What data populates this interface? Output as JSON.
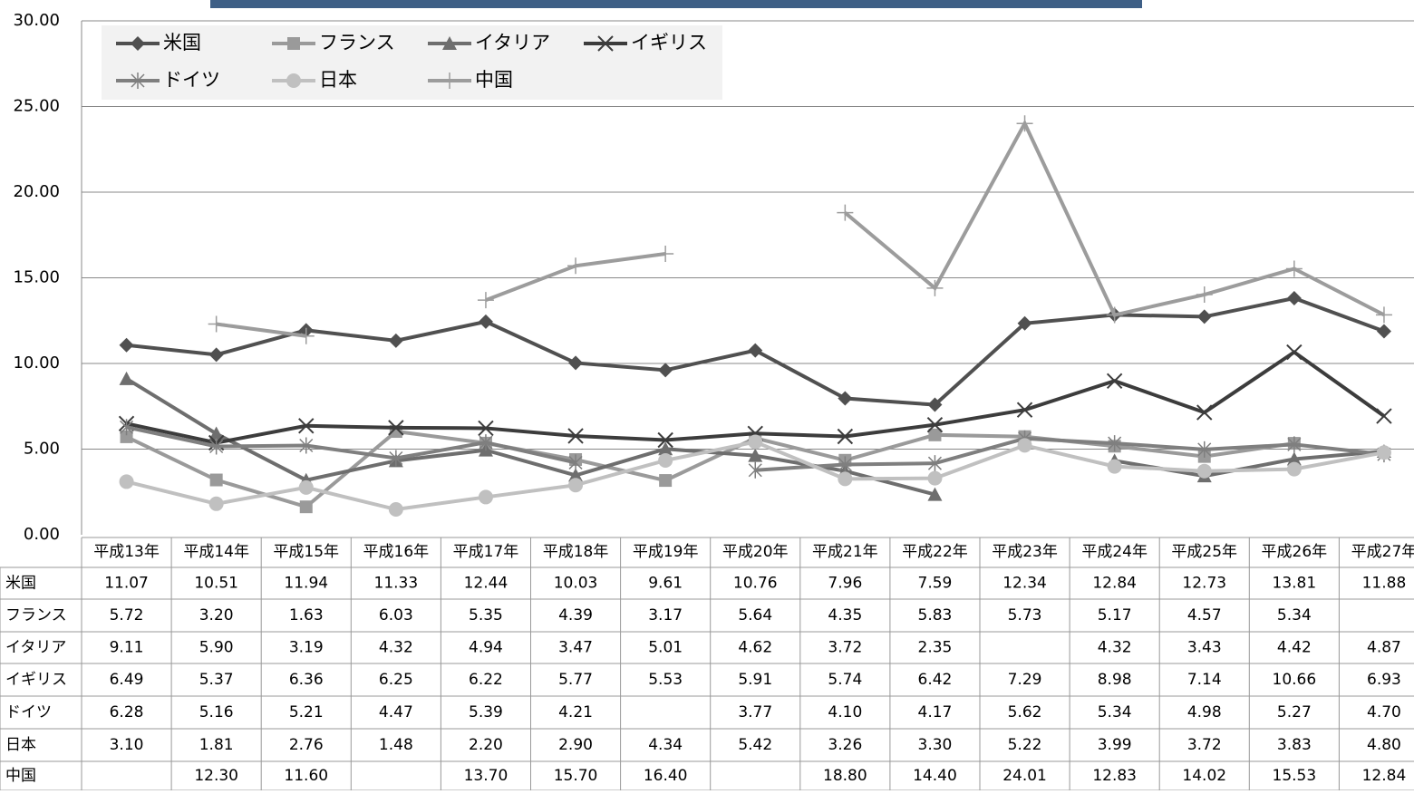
{
  "chart_data": {
    "type": "line",
    "categories": [
      "平成13年",
      "平成14年",
      "平成15年",
      "平成16年",
      "平成17年",
      "平成18年",
      "平成19年",
      "平成20年",
      "平成21年",
      "平成22年",
      "平成23年",
      "平成24年",
      "平成25年",
      "平成26年",
      "平成27年"
    ],
    "ylim": [
      0,
      30
    ],
    "yticks": [
      {
        "value": 0,
        "label": "0.00"
      },
      {
        "value": 5,
        "label": "5.00"
      },
      {
        "value": 10,
        "label": "10.00"
      },
      {
        "value": 15,
        "label": "15.00"
      },
      {
        "value": 20,
        "label": "20.00"
      },
      {
        "value": 25,
        "label": "25.00"
      },
      {
        "value": 30,
        "label": "30.00"
      }
    ],
    "grid": true,
    "legend": "top-left",
    "series": [
      {
        "name": "米国",
        "color": "#505050",
        "marker": "diamond",
        "values": [
          11.07,
          10.51,
          11.94,
          11.33,
          12.44,
          10.03,
          9.61,
          10.76,
          7.96,
          7.59,
          12.34,
          12.84,
          12.73,
          13.81,
          11.88
        ],
        "value_labels": [
          "11.07",
          "10.51",
          "11.94",
          "11.33",
          "12.44",
          "10.03",
          "9.61",
          "10.76",
          "7.96",
          "7.59",
          "12.34",
          "12.84",
          "12.73",
          "13.81",
          "11.88"
        ]
      },
      {
        "name": "フランス",
        "color": "#9a9a9a",
        "marker": "square",
        "values": [
          5.72,
          3.2,
          1.63,
          6.03,
          5.35,
          4.39,
          3.17,
          5.64,
          4.35,
          5.83,
          5.73,
          5.17,
          4.57,
          5.34,
          null
        ],
        "value_labels": [
          "5.72",
          "3.20",
          "1.63",
          "6.03",
          "5.35",
          "4.39",
          "3.17",
          "5.64",
          "4.35",
          "5.83",
          "5.73",
          "5.17",
          "4.57",
          "5.34",
          null
        ]
      },
      {
        "name": "イタリア",
        "color": "#6e6e6e",
        "marker": "triangle",
        "values": [
          9.11,
          5.9,
          3.19,
          4.32,
          4.94,
          3.47,
          5.01,
          4.62,
          3.72,
          2.35,
          null,
          4.32,
          3.43,
          4.42,
          4.87
        ],
        "value_labels": [
          "9.11",
          "5.90",
          "3.19",
          "4.32",
          "4.94",
          "3.47",
          "5.01",
          "4.62",
          "3.72",
          "2.35",
          null,
          "4.32",
          "3.43",
          "4.42",
          "4.87"
        ]
      },
      {
        "name": "イギリス",
        "color": "#3c3c3c",
        "marker": "x",
        "values": [
          6.49,
          5.37,
          6.36,
          6.25,
          6.22,
          5.77,
          5.53,
          5.91,
          5.74,
          6.42,
          7.29,
          8.98,
          7.14,
          10.66,
          6.93
        ],
        "value_labels": [
          "6.49",
          "5.37",
          "6.36",
          "6.25",
          "6.22",
          "5.77",
          "5.53",
          "5.91",
          "5.74",
          "6.42",
          "7.29",
          "8.98",
          "7.14",
          "10.66",
          "6.93"
        ]
      },
      {
        "name": "ドイツ",
        "color": "#7f7f7f",
        "marker": "star",
        "values": [
          6.28,
          5.16,
          5.21,
          4.47,
          5.39,
          4.21,
          null,
          3.77,
          4.1,
          4.17,
          5.62,
          5.34,
          4.98,
          5.27,
          4.7
        ],
        "value_labels": [
          "6.28",
          "5.16",
          "5.21",
          "4.47",
          "5.39",
          "4.21",
          null,
          "3.77",
          "4.10",
          "4.17",
          "5.62",
          "5.34",
          "4.98",
          "5.27",
          "4.70"
        ]
      },
      {
        "name": "日本",
        "color": "#c0c0c0",
        "marker": "circle",
        "values": [
          3.1,
          1.81,
          2.76,
          1.48,
          2.2,
          2.9,
          4.34,
          5.42,
          3.26,
          3.3,
          5.22,
          3.99,
          3.72,
          3.83,
          4.8
        ],
        "value_labels": [
          "3.10",
          "1.81",
          "2.76",
          "1.48",
          "2.20",
          "2.90",
          "4.34",
          "5.42",
          "3.26",
          "3.30",
          "5.22",
          "3.99",
          "3.72",
          "3.83",
          "4.80"
        ]
      },
      {
        "name": "中国",
        "color": "#9c9c9c",
        "marker": "plus",
        "values": [
          null,
          12.3,
          11.6,
          null,
          13.7,
          15.7,
          16.4,
          null,
          18.8,
          14.4,
          24.01,
          12.83,
          14.02,
          15.53,
          12.84
        ],
        "value_labels": [
          null,
          "12.30",
          "11.60",
          null,
          "13.70",
          "15.70",
          "16.40",
          null,
          "18.80",
          "14.40",
          "24.01",
          "12.83",
          "14.02",
          "15.53",
          "12.84"
        ]
      }
    ]
  }
}
